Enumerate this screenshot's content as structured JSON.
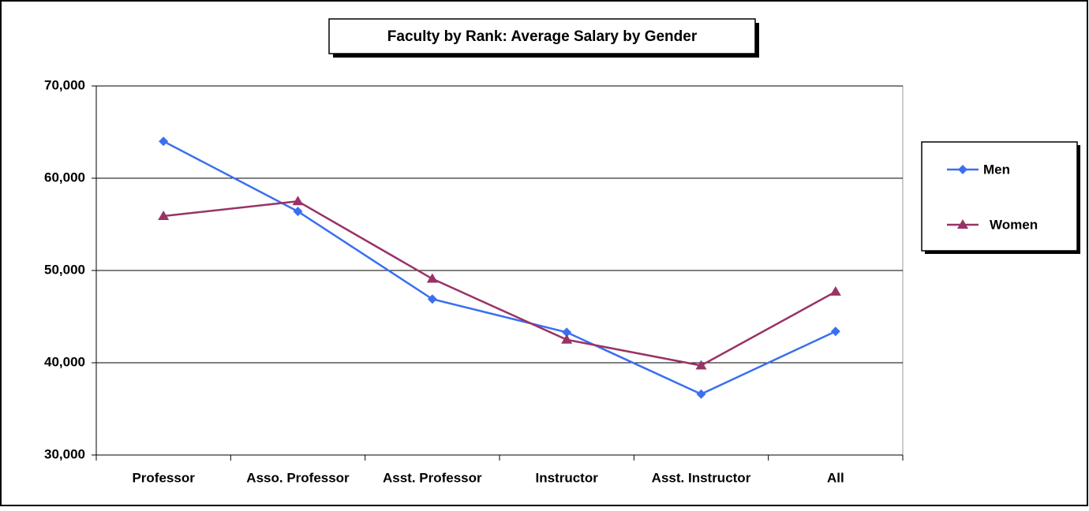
{
  "chart_data": {
    "type": "line",
    "title": "Faculty by Rank: Average Salary by Gender",
    "categories": [
      "Professor",
      "Asso. Professor",
      "Asst. Professor",
      "Instructor",
      "Asst. Instructor",
      "All"
    ],
    "series": [
      {
        "name": "Men",
        "color": "#3a6ff0",
        "marker": "diamond",
        "values": [
          64000,
          56400,
          46900,
          43300,
          36600,
          43400
        ]
      },
      {
        "name": "Women",
        "color": "#993366",
        "marker": "triangle",
        "values": [
          55900,
          57500,
          49100,
          42500,
          39700,
          47700
        ]
      }
    ],
    "ylim": [
      30000,
      70000
    ],
    "yticks": [
      {
        "value": 30000,
        "label": "30,000"
      },
      {
        "value": 40000,
        "label": "40,000"
      },
      {
        "value": 50000,
        "label": "50,000"
      },
      {
        "value": 60000,
        "label": "60,000"
      },
      {
        "value": 70000,
        "label": "70,000"
      }
    ],
    "grid": true,
    "legend": "right"
  }
}
